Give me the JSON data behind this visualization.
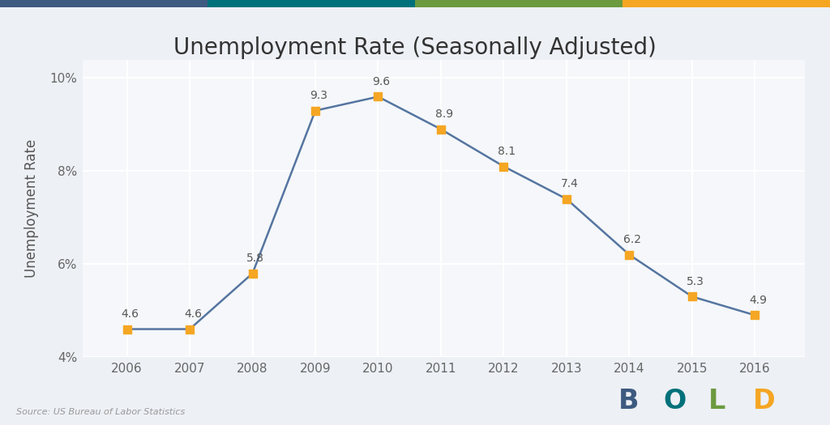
{
  "title": "Unemployment Rate (Seasonally Adjusted)",
  "ylabel": "Unemployment Rate",
  "source": "Source: US Bureau of Labor Statistics",
  "years": [
    2006,
    2007,
    2008,
    2009,
    2010,
    2011,
    2012,
    2013,
    2014,
    2015,
    2016
  ],
  "values": [
    4.6,
    4.6,
    5.8,
    9.3,
    9.6,
    8.9,
    8.1,
    7.4,
    6.2,
    5.3,
    4.9
  ],
  "line_color": "#5575a0",
  "marker_color": "#f5a623",
  "bg_color": "#edf0f5",
  "plot_bg_color": "#f5f7fa",
  "grid_color": "#ffffff",
  "ylim": [
    4.0,
    10.4
  ],
  "yticks": [
    4,
    6,
    8,
    10
  ],
  "ytick_labels": [
    "4%",
    "6%",
    "8%",
    "10%"
  ],
  "top_bar_colors": [
    "#3d5a80",
    "#00717a",
    "#6b9a3f",
    "#f5a623"
  ],
  "bold_colors": {
    "B": "#3d5a80",
    "O": "#00717a",
    "L": "#6b9a3f",
    "D": "#f5a623"
  },
  "title_fontsize": 20,
  "label_fontsize": 12,
  "annotation_fontsize": 10,
  "source_fontsize": 8
}
